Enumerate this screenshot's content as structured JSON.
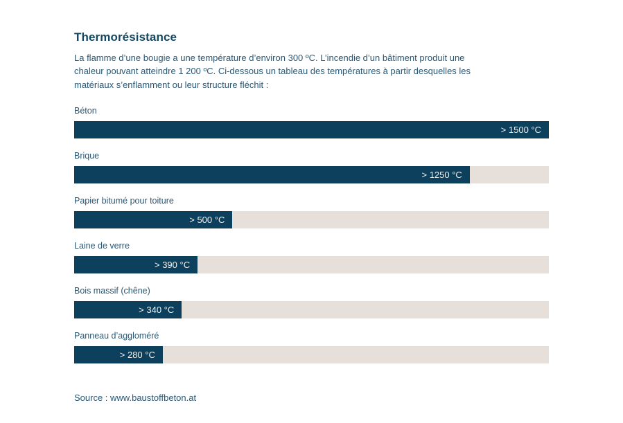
{
  "page": {
    "title": "Thermorésistance",
    "intro": "La flamme d’une bougie a une température d’environ 300 ºC. L’incendie d’un bâtiment produit une chaleur pouvant atteindre 1 200 ºC. Ci-dessous un tableau des températures à partir desquelles les matériaux s’enflamment ou leur structure fléchit :",
    "source": "Source : www.baustoffbeton.at"
  },
  "colors": {
    "bar_fill": "#0d405c",
    "bar_track": "#e6dfda",
    "heading_text": "#164862",
    "body_text": "#2a5875",
    "value_text": "#f4f1ee",
    "background": "#ffffff"
  },
  "chart_data": {
    "type": "bar",
    "orientation": "horizontal",
    "title": "Thermorésistance",
    "categories": [
      "Béton",
      "Brique",
      "Papier bitumé pour toiture",
      "Laine de verre",
      "Bois massif (chêne)",
      "Panneau d’aggloméré"
    ],
    "values": [
      1500,
      1250,
      500,
      390,
      340,
      280
    ],
    "value_labels": [
      "> 1500 °C",
      "> 1250 °C",
      "> 500 °C",
      "> 390 °C",
      "> 340 °C",
      "> 280 °C"
    ],
    "unit": "°C",
    "xlim": [
      0,
      1500
    ],
    "grid": false,
    "legend": false,
    "xlabel": "",
    "ylabel": ""
  }
}
